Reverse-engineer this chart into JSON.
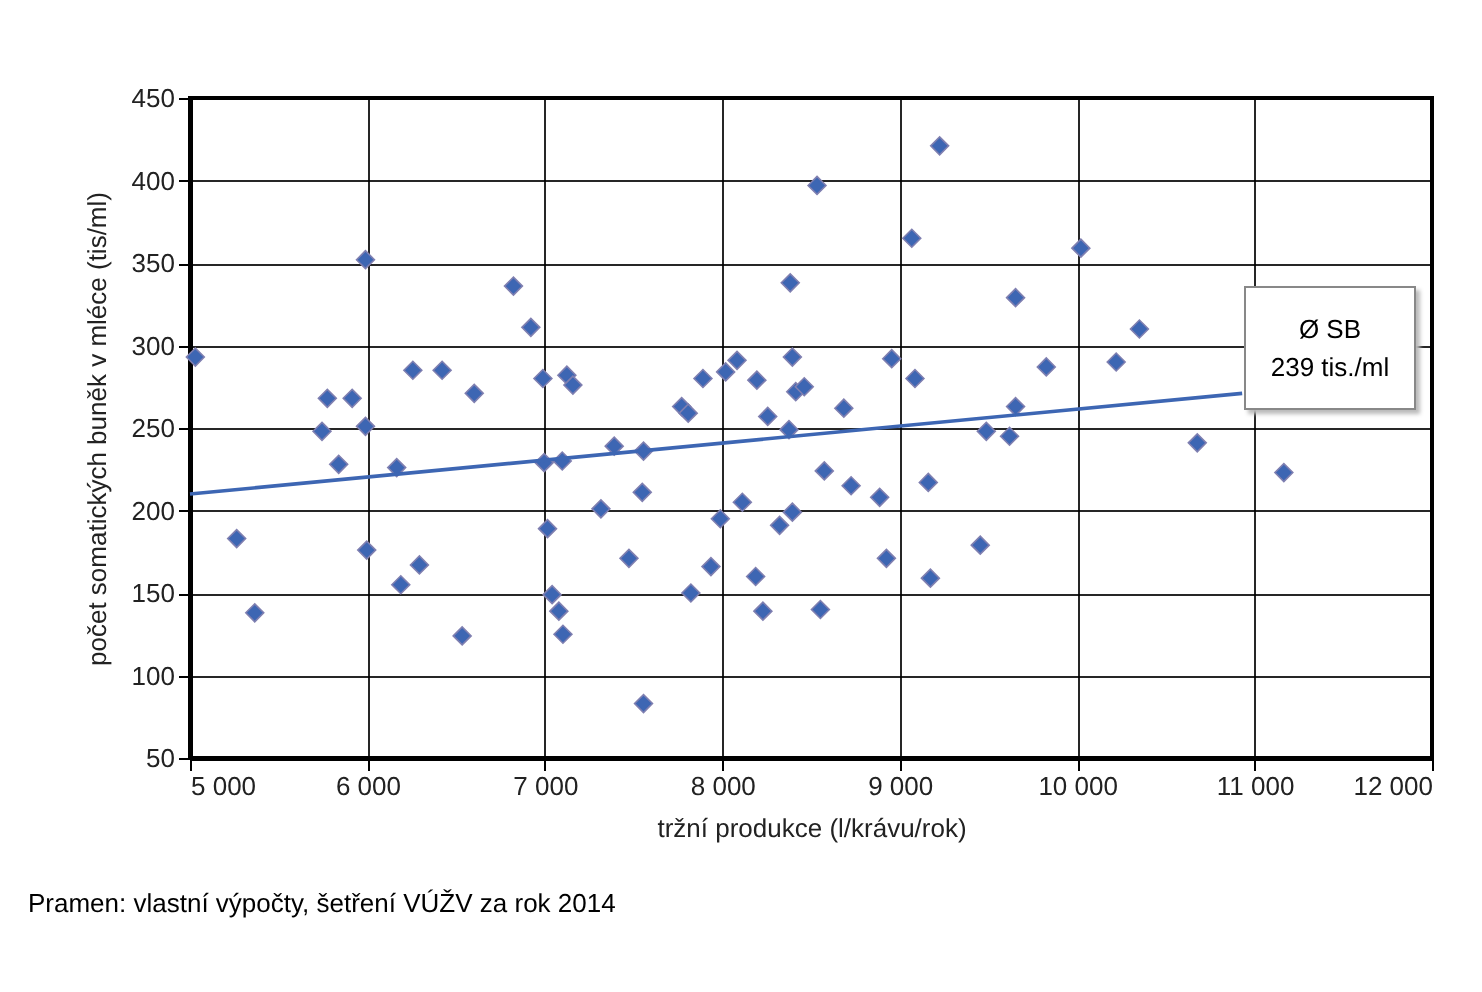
{
  "chart_data": {
    "type": "scatter",
    "xlabel": "tržní produkce (l/krávu/rok)",
    "ylabel": "počet somatických buněk v mléce (tis/ml)",
    "annotations": [
      "Ø SB\n239 tis./ml",
      "Pramen: vlastní výpočty, šetření VÚŽV za rok 2014"
    ],
    "xlim": [
      5000,
      12000
    ],
    "xticks": [
      {
        "value": 5000,
        "label": "5 000"
      },
      {
        "value": 6000,
        "label": "6 000"
      },
      {
        "value": 7000,
        "label": "7 000"
      },
      {
        "value": 8000,
        "label": "8 000"
      },
      {
        "value": 9000,
        "label": "9 000"
      },
      {
        "value": 10000,
        "label": "10 000"
      },
      {
        "value": 11000,
        "label": "11 000"
      },
      {
        "value": 12000,
        "label": "12 000"
      }
    ],
    "ylim": [
      50,
      450
    ],
    "yticks": [
      50,
      100,
      150,
      200,
      250,
      300,
      350,
      400,
      450
    ],
    "grid": true,
    "series": [
      {
        "marker": "diamond",
        "color": "#3d66b3",
        "x": [
          5030,
          5263,
          5365,
          5744,
          5774,
          5838,
          5914,
          5989,
          5989,
          5996,
          6165,
          6188,
          6256,
          6293,
          6421,
          6534,
          6602,
          6823,
          6921,
          6989,
          6996,
          7015,
          7041,
          7079,
          7098,
          7102,
          7124,
          7158,
          7316,
          7391,
          7474,
          7549,
          7556,
          7556,
          7771,
          7808,
          7823,
          7891,
          7936,
          7989,
          8019,
          8083,
          8113,
          8188,
          8195,
          8229,
          8256,
          8323,
          8376,
          8383,
          8395,
          8395,
          8414,
          8462,
          8534,
          8553,
          8575,
          8685,
          8726,
          8887,
          8925,
          8955,
          9068,
          9086,
          9161,
          9173,
          9225,
          9454,
          9488,
          9619,
          9653,
          9653,
          9826,
          10021,
          10220,
          10351,
          10677,
          11165
        ],
        "values": [
          293,
          183,
          138,
          248,
          268,
          228,
          268,
          352,
          251,
          176,
          226,
          155,
          285,
          167,
          285,
          124,
          271,
          336,
          311,
          280,
          229,
          189,
          149,
          139,
          230,
          125,
          282,
          276,
          201,
          239,
          171,
          211,
          236,
          83,
          263,
          259,
          150,
          280,
          166,
          195,
          284,
          291,
          205,
          160,
          279,
          139,
          257,
          191,
          249,
          338,
          293,
          199,
          272,
          275,
          397,
          140,
          224,
          262,
          215,
          208,
          171,
          292,
          365,
          280,
          217,
          159,
          421,
          179,
          248,
          245,
          329,
          263,
          287,
          359,
          290,
          310,
          241,
          223
        ]
      },
      {
        "type": "line",
        "color": "#3d66b3",
        "x": [
          5000,
          10930
        ],
        "values": [
          210,
          271
        ]
      }
    ]
  }
}
